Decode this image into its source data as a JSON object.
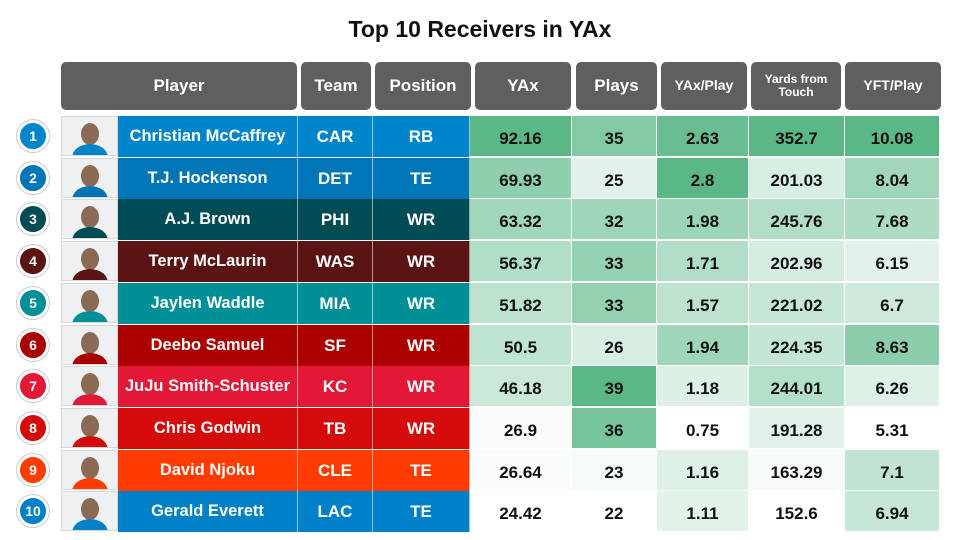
{
  "title": "Top 10 Receivers in YAx",
  "chart_data": {
    "type": "table",
    "title": "Top 10 Receivers in YAx",
    "columns": [
      "Player",
      "Team",
      "Position",
      "YAx",
      "Plays",
      "YAx/Play",
      "Yards from Touch",
      "YFT/Play"
    ],
    "rows": [
      {
        "rank": "1",
        "player": "Christian McCaffrey",
        "team": "CAR",
        "position": "RB",
        "yax": 92.16,
        "plays": 35,
        "yax_play": 2.63,
        "yft": 352.7,
        "yft_play": 10.08,
        "team_color": "#0085ca"
      },
      {
        "rank": "2",
        "player": "T.J. Hockenson",
        "team": "DET",
        "position": "TE",
        "yax": 69.93,
        "plays": 25,
        "yax_play": 2.8,
        "yft": 201.03,
        "yft_play": 8.04,
        "team_color": "#0076b6"
      },
      {
        "rank": "3",
        "player": "A.J. Brown",
        "team": "PHI",
        "position": "WR",
        "yax": 63.32,
        "plays": 32,
        "yax_play": 1.98,
        "yft": 245.76,
        "yft_play": 7.68,
        "team_color": "#004c54"
      },
      {
        "rank": "4",
        "player": "Terry McLaurin",
        "team": "WAS",
        "position": "WR",
        "yax": 56.37,
        "plays": 33,
        "yax_play": 1.71,
        "yft": 202.96,
        "yft_play": 6.15,
        "team_color": "#5a1414"
      },
      {
        "rank": "5",
        "player": "Jaylen Waddle",
        "team": "MIA",
        "position": "WR",
        "yax": 51.82,
        "plays": 33,
        "yax_play": 1.57,
        "yft": 221.02,
        "yft_play": 6.7,
        "team_color": "#008e97"
      },
      {
        "rank": "6",
        "player": "Deebo Samuel",
        "team": "SF",
        "position": "WR",
        "yax": 50.5,
        "plays": 26,
        "yax_play": 1.94,
        "yft": 224.35,
        "yft_play": 8.63,
        "team_color": "#aa0000"
      },
      {
        "rank": "7",
        "player": "JuJu Smith-Schuster",
        "team": "KC",
        "position": "WR",
        "yax": 46.18,
        "plays": 39,
        "yax_play": 1.18,
        "yft": 244.01,
        "yft_play": 6.26,
        "team_color": "#e31837"
      },
      {
        "rank": "8",
        "player": "Chris Godwin",
        "team": "TB",
        "position": "WR",
        "yax": 26.9,
        "plays": 36,
        "yax_play": 0.75,
        "yft": 191.28,
        "yft_play": 5.31,
        "team_color": "#d50a0a"
      },
      {
        "rank": "9",
        "player": "David Njoku",
        "team": "CLE",
        "position": "TE",
        "yax": 26.64,
        "plays": 23,
        "yax_play": 1.16,
        "yft": 163.29,
        "yft_play": 7.1,
        "team_color": "#ff3c00"
      },
      {
        "rank": "10",
        "player": "Gerald Everett",
        "team": "LAC",
        "position": "TE",
        "yax": 24.42,
        "plays": 22,
        "yax_play": 1.11,
        "yft": 152.6,
        "yft_play": 6.94,
        "team_color": "#0080c6"
      }
    ]
  },
  "colors": {
    "header_bg": "#5f5f5f",
    "scale_low": "#ffffff",
    "scale_high": "#5ab887"
  }
}
